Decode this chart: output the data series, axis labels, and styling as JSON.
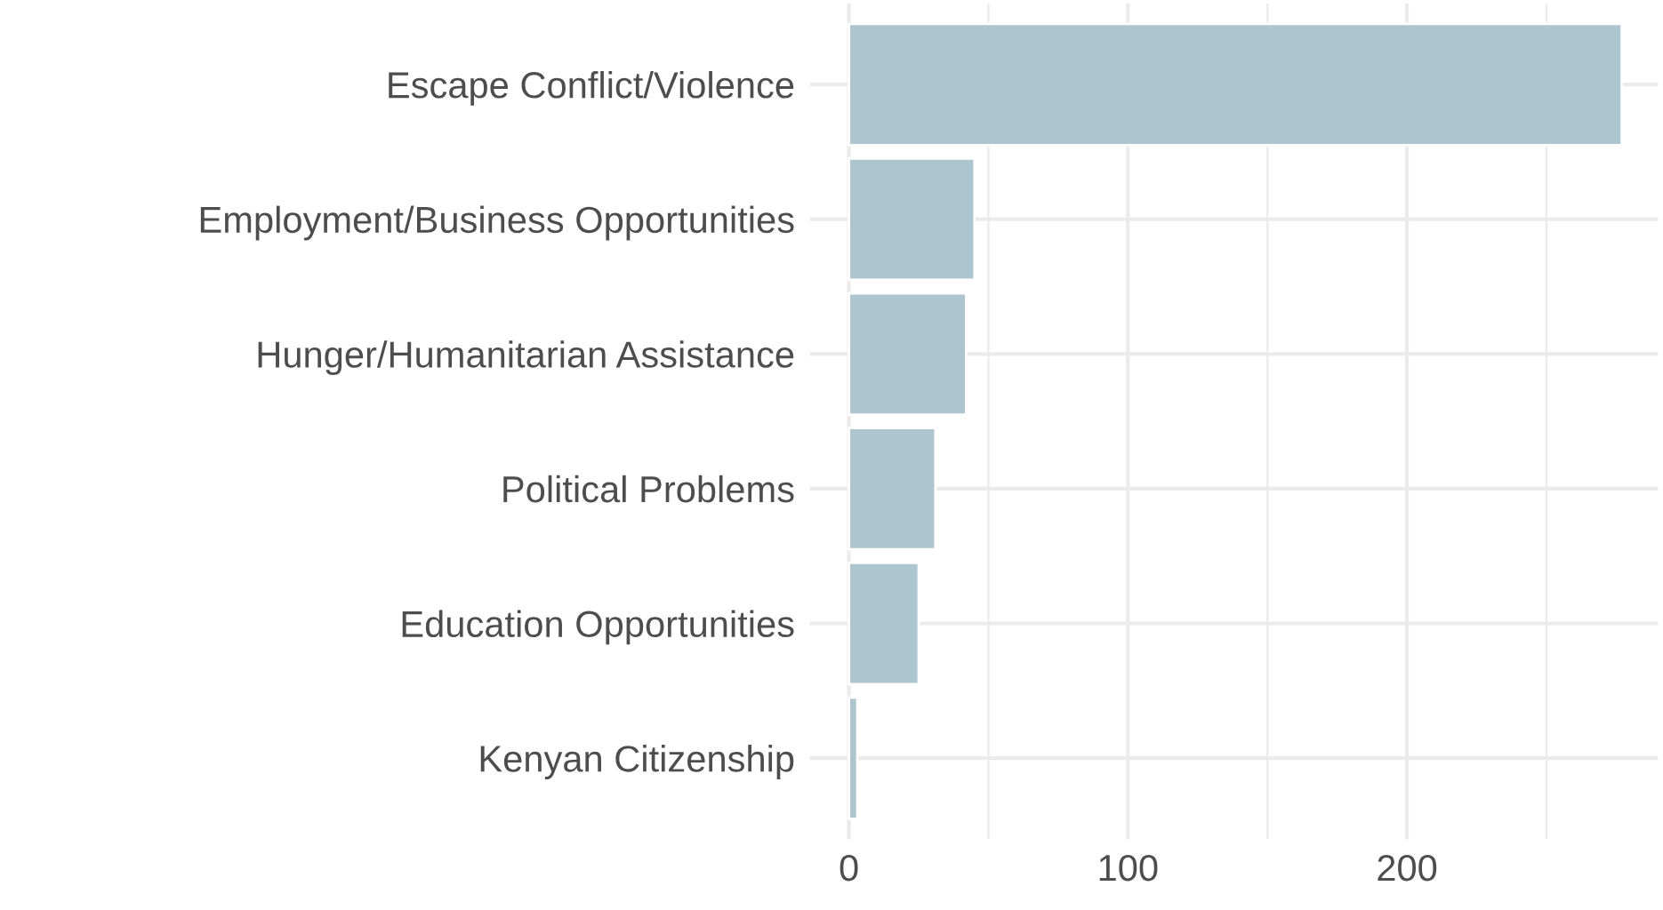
{
  "chart_data": {
    "type": "bar",
    "orientation": "horizontal",
    "categories": [
      "Escape Conflict/Violence",
      "Employment/Business Opportunities",
      "Hunger/Humanitarian Assistance",
      "Political Problems",
      "Education Opportunities",
      "Kenyan Citizenship"
    ],
    "values": [
      277,
      45,
      42,
      31,
      25,
      3
    ],
    "color": "#adc5cf",
    "xlim": [
      -14,
      290
    ],
    "xticks": [
      0,
      {
        "value": 50,
        "label": null
      },
      100,
      {
        "value": 150,
        "label": null
      },
      200,
      {
        "value": 250,
        "label": null
      }
    ],
    "grid": true
  }
}
